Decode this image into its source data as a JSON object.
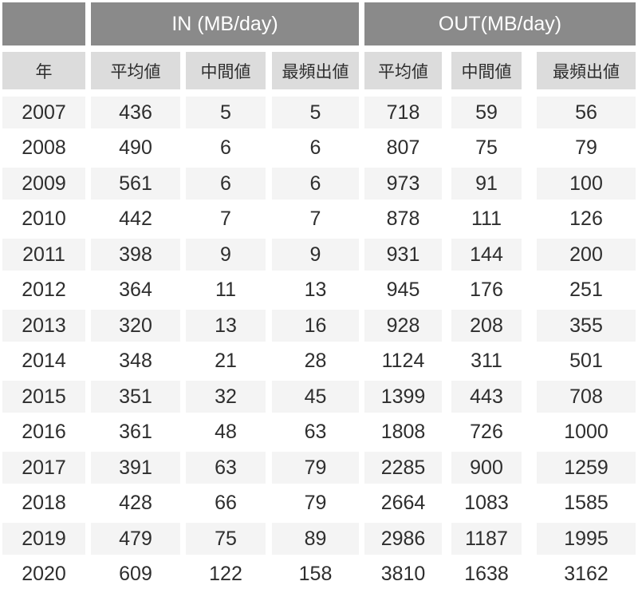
{
  "table": {
    "group_headers": [
      {
        "label": ""
      },
      {
        "label": "IN (MB/day)"
      },
      {
        "label": "OUT(MB/day)"
      }
    ],
    "column_headers": [
      "年",
      "平均値",
      "中間値",
      "最頻出値",
      "平均値",
      "中間値",
      "最頻出値"
    ]
  },
  "chart_data": {
    "type": "table",
    "title": "",
    "column_groups": [
      {
        "label": "",
        "span": 1
      },
      {
        "label": "IN (MB/day)",
        "span": 3
      },
      {
        "label": "OUT(MB/day)",
        "span": 3
      }
    ],
    "columns": [
      "年",
      "平均値",
      "中間値",
      "最頻出値",
      "平均値",
      "中間値",
      "最頻出値"
    ],
    "rows": [
      [
        2007,
        436,
        5,
        5,
        718,
        59,
        56
      ],
      [
        2008,
        490,
        6,
        6,
        807,
        75,
        79
      ],
      [
        2009,
        561,
        6,
        6,
        973,
        91,
        100
      ],
      [
        2010,
        442,
        7,
        7,
        878,
        111,
        126
      ],
      [
        2011,
        398,
        9,
        9,
        931,
        144,
        200
      ],
      [
        2012,
        364,
        11,
        13,
        945,
        176,
        251
      ],
      [
        2013,
        320,
        13,
        16,
        928,
        208,
        355
      ],
      [
        2014,
        348,
        21,
        28,
        1124,
        311,
        501
      ],
      [
        2015,
        351,
        32,
        45,
        1399,
        443,
        708
      ],
      [
        2016,
        361,
        48,
        63,
        1808,
        726,
        1000
      ],
      [
        2017,
        391,
        63,
        79,
        2285,
        900,
        1259
      ],
      [
        2018,
        428,
        66,
        79,
        2664,
        1083,
        1585
      ],
      [
        2019,
        479,
        75,
        89,
        2986,
        1187,
        1995
      ],
      [
        2020,
        609,
        122,
        158,
        3810,
        1638,
        3162
      ]
    ],
    "layout_hints": {
      "striped_rows": "odd data rows (2007, 2009, ...) have light stripe background",
      "alignment": "all cells centered"
    }
  },
  "colors": {
    "group_header_bg": "#8a8a8a",
    "group_header_text": "#ffffff",
    "column_header_bg": "#dcdcdc",
    "row_stripe_bg": "#f4f4f4",
    "text": "#2e2e2e",
    "background": "#ffffff"
  }
}
